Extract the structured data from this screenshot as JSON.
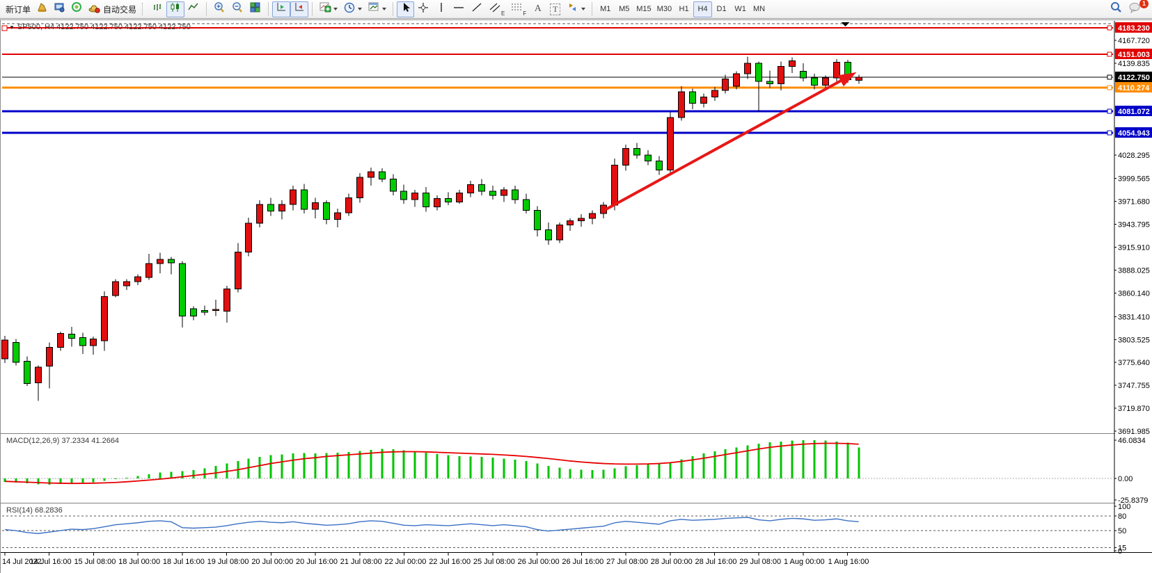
{
  "toolbar": {
    "new_order": "新订单",
    "auto_trading": "自动交易",
    "timeframes": [
      "M1",
      "M5",
      "M15",
      "M30",
      "H1",
      "H4",
      "D1",
      "W1",
      "MN"
    ],
    "active_timeframe": "H4",
    "notification_count": "1",
    "tool_letters": {
      "channel": "E",
      "fibonacci": "F",
      "text": "A",
      "label": "T"
    }
  },
  "chart_header": {
    "title": "SP500, H4  4122.750 4122.750 4122.750 4122.750"
  },
  "indicators": {
    "macd_label": "MACD(12,26,9) 37.2334 41.2664",
    "rsi_label": "RSI(14) 68.2836"
  },
  "chart_data": {
    "type": "candlestick",
    "symbol": "SP500",
    "period": "H4",
    "ylim": [
      3689.5,
      4191.5
    ],
    "bull_color": "#e01010",
    "bear_color": "#00cc00",
    "wick_color": "#000000",
    "candles": [
      [
        3780,
        3808,
        3775,
        3803
      ],
      [
        3800,
        3804,
        3772,
        3776
      ],
      [
        3777,
        3783,
        3747,
        3750
      ],
      [
        3751,
        3772,
        3729,
        3770
      ],
      [
        3771,
        3800,
        3744,
        3794
      ],
      [
        3794,
        3813,
        3790,
        3811
      ],
      [
        3810,
        3819,
        3795,
        3805
      ],
      [
        3806,
        3812,
        3786,
        3796
      ],
      [
        3796,
        3807,
        3785,
        3804
      ],
      [
        3802,
        3862,
        3790,
        3856
      ],
      [
        3857,
        3877,
        3855,
        3874
      ],
      [
        3869,
        3877,
        3864,
        3874
      ],
      [
        3874,
        3883,
        3870,
        3880
      ],
      [
        3879,
        3908,
        3876,
        3896
      ],
      [
        3896,
        3909,
        3884,
        3901
      ],
      [
        3901,
        3904,
        3883,
        3897
      ],
      [
        3896,
        3899,
        3818,
        3832
      ],
      [
        3841,
        3844,
        3827,
        3832
      ],
      [
        3839,
        3845,
        3833,
        3837
      ],
      [
        3839,
        3852,
        3832,
        3840
      ],
      [
        3838,
        3869,
        3824,
        3865
      ],
      [
        3865,
        3921,
        3861,
        3910
      ],
      [
        3910,
        3952,
        3905,
        3945
      ],
      [
        3945,
        3973,
        3940,
        3968
      ],
      [
        3968,
        3976,
        3954,
        3960
      ],
      [
        3960,
        3973,
        3950,
        3968
      ],
      [
        3968,
        3991,
        3961,
        3986
      ],
      [
        3986,
        3993,
        3957,
        3962
      ],
      [
        3962,
        3976,
        3951,
        3970
      ],
      [
        3970,
        3973,
        3944,
        3950
      ],
      [
        3950,
        3963,
        3940,
        3958
      ],
      [
        3958,
        3981,
        3954,
        3976
      ],
      [
        3976,
        4006,
        3970,
        4001
      ],
      [
        4001,
        4013,
        3991,
        4008
      ],
      [
        4008,
        4012,
        3995,
        3999
      ],
      [
        3999,
        4005,
        3979,
        3984
      ],
      [
        3984,
        3992,
        3969,
        3974
      ],
      [
        3974,
        3986,
        3965,
        3982
      ],
      [
        3982,
        3989,
        3959,
        3965
      ],
      [
        3965,
        3979,
        3961,
        3975
      ],
      [
        3975,
        3983,
        3967,
        3971
      ],
      [
        3971,
        3986,
        3969,
        3982
      ],
      [
        3982,
        3997,
        3977,
        3992
      ],
      [
        3992,
        3999,
        3979,
        3984
      ],
      [
        3984,
        3991,
        3974,
        3979
      ],
      [
        3979,
        3989,
        3971,
        3986
      ],
      [
        3986,
        3991,
        3969,
        3974
      ],
      [
        3974,
        3981,
        3957,
        3961
      ],
      [
        3961,
        3966,
        3929,
        3937
      ],
      [
        3937,
        3946,
        3919,
        3925
      ],
      [
        3925,
        3946,
        3921,
        3943
      ],
      [
        3943,
        3951,
        3936,
        3948
      ],
      [
        3948,
        3956,
        3941,
        3951
      ],
      [
        3951,
        3961,
        3944,
        3957
      ],
      [
        3957,
        3971,
        3951,
        3967
      ],
      [
        3967,
        4024,
        3961,
        4016
      ],
      [
        4016,
        4041,
        4009,
        4036
      ],
      [
        4036,
        4043,
        4024,
        4028
      ],
      [
        4028,
        4034,
        4016,
        4021
      ],
      [
        4021,
        4027,
        4004,
        4010
      ],
      [
        4010,
        4080,
        4006,
        4074
      ],
      [
        4074,
        4112,
        4070,
        4105
      ],
      [
        4105,
        4109,
        4084,
        4091
      ],
      [
        4091,
        4103,
        4086,
        4099
      ],
      [
        4099,
        4111,
        4094,
        4107
      ],
      [
        4107,
        4126,
        4103,
        4121
      ],
      [
        4112,
        4130,
        4108,
        4127
      ],
      [
        4127,
        4148,
        4121,
        4140
      ],
      [
        4140,
        4142,
        4081,
        4118
      ],
      [
        4118,
        4131,
        4110,
        4115
      ],
      [
        4115,
        4142,
        4107,
        4136
      ],
      [
        4136,
        4147,
        4128,
        4143
      ],
      [
        4130,
        4140,
        4118,
        4122
      ],
      [
        4122,
        4127,
        4108,
        4113
      ],
      [
        4113,
        4125,
        4110,
        4122
      ],
      [
        4122,
        4145,
        4118,
        4141
      ],
      [
        4141,
        4144,
        4116,
        4120
      ],
      [
        4119,
        4126,
        4115,
        4122.75
      ]
    ],
    "price_ticks": [
      "4167.720",
      "4139.835",
      "4028.295",
      "3999.565",
      "3971.680",
      "3943.795",
      "3915.910",
      "3888.025",
      "3860.140",
      "3831.410",
      "3803.525",
      "3775.640",
      "3747.755",
      "3719.870",
      "3691.985"
    ],
    "hlines": [
      {
        "label": "4183.230",
        "price": 4183.23,
        "color": "#e00000",
        "width": 2
      },
      {
        "label": "4151.003",
        "price": 4151.003,
        "color": "#e00000",
        "width": 2
      },
      {
        "label": "4122.750",
        "price": 4122.75,
        "color": "#000000",
        "width": 1
      },
      {
        "label": "4110.274",
        "price": 4110.274,
        "color": "#ff8c00",
        "width": 3
      },
      {
        "label": "4081.072",
        "price": 4081.072,
        "color": "#0000c8",
        "width": 3
      },
      {
        "label": "4054.943",
        "price": 4054.943,
        "color": "#0000c8",
        "width": 3
      }
    ],
    "dashed_line_price": 4188.2,
    "shift_marker_bar": 75.8,
    "trend_arrow": {
      "from_bar": 54.2,
      "from_price": 3962,
      "to_bar": 76.8,
      "to_price": 4129,
      "color": "#e81717",
      "width": 4
    },
    "macd": {
      "ticks": [
        "46.0834",
        "0.00",
        "-25.8379"
      ],
      "tick_values": [
        46.0834,
        0,
        -25.8379
      ],
      "ylim": [
        -29.3,
        52.8
      ],
      "hist_color": "#00c400",
      "line_color": "#e60000",
      "values": [
        -4,
        -5,
        -6,
        -7,
        -7.5,
        -6.5,
        -5.5,
        -5,
        -4.5,
        -3,
        -1,
        1,
        3,
        5,
        7,
        8,
        9,
        10,
        12,
        15,
        18,
        21,
        24,
        26,
        28,
        29,
        30,
        30.5,
        30,
        30.5,
        31,
        32,
        33,
        34.5,
        35.5,
        35,
        34,
        32.5,
        31,
        29.5,
        28,
        27,
        26.5,
        26,
        25,
        24,
        22.5,
        21,
        18,
        15,
        13,
        11.5,
        10.5,
        10,
        10.5,
        12,
        14.5,
        16,
        17,
        17.5,
        19,
        23,
        27,
        30,
        32.5,
        35,
        37.5,
        40,
        42,
        43.5,
        44.5,
        45.5,
        46,
        46.05,
        45.5,
        44.5,
        43,
        37.23
      ],
      "signal": [
        -3.5,
        -4,
        -4.5,
        -5,
        -5.5,
        -5.8,
        -6,
        -5.9,
        -5.7,
        -5.3,
        -4.8,
        -4,
        -3,
        -2,
        -0.8,
        0.5,
        2,
        3.5,
        5,
        6.5,
        8.5,
        10.5,
        13,
        15.5,
        18,
        20,
        22,
        23.8,
        25,
        26.5,
        27.5,
        28.5,
        29.5,
        30.5,
        31.5,
        32,
        32.3,
        32.3,
        32,
        31.5,
        31,
        30.5,
        30,
        29.5,
        29,
        28.3,
        27.5,
        26.5,
        25.3,
        24,
        22.5,
        21,
        19.8,
        18.8,
        18,
        17.5,
        17.3,
        17.3,
        17.5,
        18,
        19,
        20.5,
        22.3,
        24.3,
        26.5,
        28.8,
        31,
        33.3,
        35.5,
        37.5,
        39,
        40.3,
        41.3,
        42,
        42.3,
        42.3,
        42,
        41.27
      ]
    },
    "rsi": {
      "ticks": [
        "100",
        "80",
        "50",
        "15",
        "0"
      ],
      "tick_values": [
        100,
        80,
        50,
        15,
        0
      ],
      "levels": [
        80,
        50,
        15
      ],
      "ylim": [
        6,
        104
      ],
      "line_color": "#3a6fc4",
      "values": [
        52,
        50,
        46,
        44,
        47,
        50,
        53,
        52,
        54,
        58,
        62,
        64,
        66,
        69,
        70,
        68,
        56,
        55,
        56,
        57,
        60,
        64,
        67,
        69,
        67,
        66,
        68,
        65,
        63,
        61,
        62,
        64,
        68,
        70,
        69,
        65,
        61,
        60,
        62,
        61,
        60,
        62,
        64,
        62,
        60,
        62,
        60,
        58,
        52,
        49,
        51,
        53,
        55,
        57,
        59,
        66,
        69,
        67,
        65,
        63,
        70,
        73,
        71,
        72,
        73,
        75,
        76,
        77,
        72,
        70,
        73,
        75,
        74,
        71,
        72,
        74,
        70,
        68.28
      ]
    },
    "time_labels": [
      "14 Jul 2022",
      "14 Jul 16:00",
      "15 Jul 08:00",
      "18 Jul 00:00",
      "18 Jul 16:00",
      "19 Jul 08:00",
      "20 Jul 00:00",
      "20 Jul 16:00",
      "21 Jul 08:00",
      "22 Jul 00:00",
      "22 Jul 16:00",
      "25 Jul 08:00",
      "26 Jul 00:00",
      "26 Jul 16:00",
      "27 Jul 08:00",
      "28 Jul 00:00",
      "28 Jul 16:00",
      "29 Jul 08:00",
      "1 Aug 00:00",
      "1 Aug 16:00"
    ],
    "bars_per_label": 4
  }
}
